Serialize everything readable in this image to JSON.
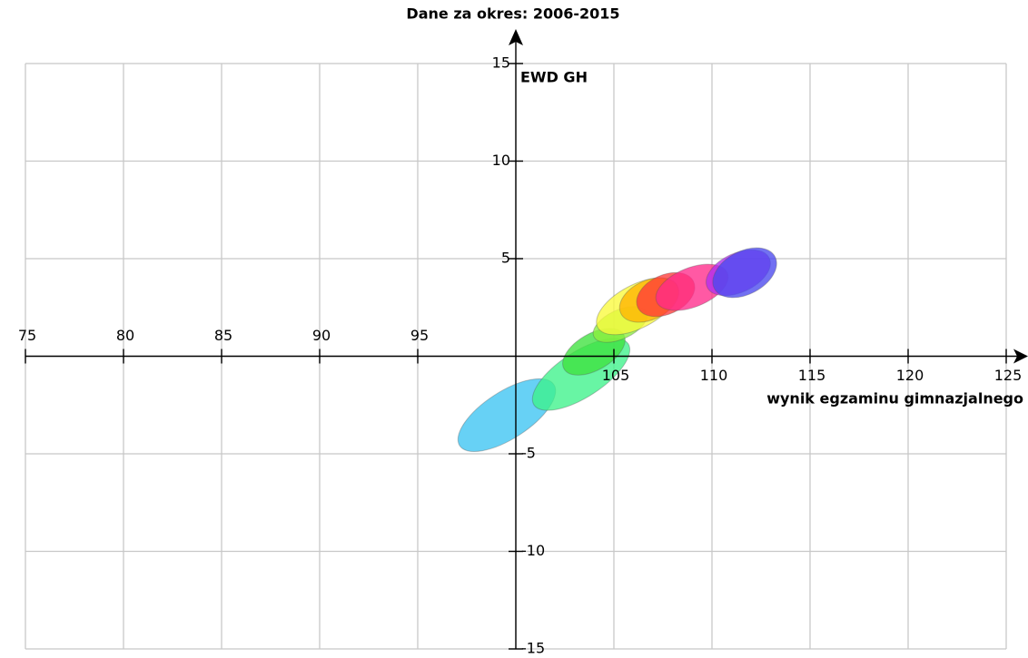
{
  "chart_data": {
    "type": "ellipse",
    "title": "Dane za okres: 2006-2015",
    "x_label": "wynik egzaminu gimnazjalnego",
    "y_label": "EWD GH",
    "xlim": [
      75,
      125
    ],
    "ylim": [
      -15,
      15
    ],
    "xticks": [
      75,
      80,
      85,
      90,
      95,
      105,
      110,
      115,
      120,
      125
    ],
    "yticks": [
      -15,
      -10,
      -5,
      5,
      10,
      15
    ],
    "grid": true,
    "ellipses": [
      {
        "color": "#3cc4f2",
        "x": 99.54,
        "y": -3.02,
        "major": 2.87,
        "minor": 1.2,
        "angle": 33
      },
      {
        "color": "#3ef28a",
        "x": 103.33,
        "y": -0.93,
        "major": 2.87,
        "minor": 1.16,
        "angle": 33
      },
      {
        "color": "#3ee23e",
        "x": 103.98,
        "y": 0.23,
        "major": 1.76,
        "minor": 0.93,
        "angle": 30
      },
      {
        "color": "#8cf03c",
        "x": 105.32,
        "y": 1.63,
        "major": 1.48,
        "minor": 0.74,
        "angle": 25
      },
      {
        "color": "#fafa3c",
        "x": 106.2,
        "y": 2.56,
        "major": 2.3,
        "minor": 1.1,
        "angle": 28
      },
      {
        "color": "#ffb400",
        "x": 106.8,
        "y": 2.88,
        "major": 1.6,
        "minor": 1.0,
        "angle": 25
      },
      {
        "color": "#ff3a3a",
        "x": 107.64,
        "y": 3.16,
        "major": 1.57,
        "minor": 1.0,
        "angle": 25
      },
      {
        "color": "#ff2a8a",
        "x": 108.98,
        "y": 3.53,
        "major": 1.95,
        "minor": 1.0,
        "angle": 22
      },
      {
        "color": "#b22ef0",
        "x": 111.34,
        "y": 4.28,
        "major": 1.75,
        "minor": 1.0,
        "angle": 25
      },
      {
        "color": "#4a48ee",
        "x": 111.67,
        "y": 4.28,
        "major": 1.75,
        "minor": 1.1,
        "angle": 28
      }
    ]
  }
}
